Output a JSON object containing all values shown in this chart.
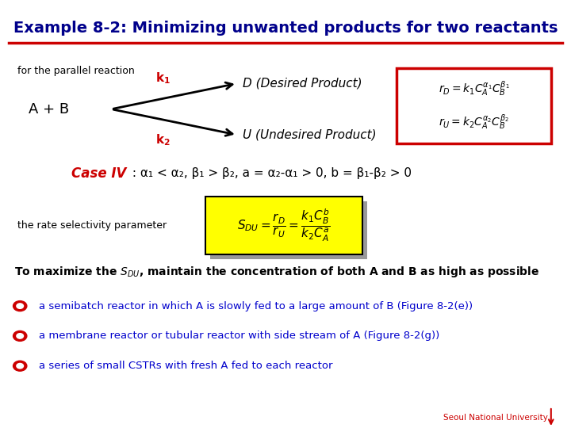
{
  "title": "Example 8-2: Minimizing unwanted products for two reactants",
  "title_color": "#00008B",
  "title_underline_color": "#CC0000",
  "bg_color": "#FFFFFF",
  "parallel_reaction_label": "for the parallel reaction",
  "reactant_label": "A + B",
  "k1_label": "k$_1$",
  "k2_label": "k$_2$",
  "desired_label": "D (Desired Product)",
  "undesired_label": "U (Undesired Product)",
  "case_IV_text": "Case IV",
  "case_IV_rest": " : α₁ < α₂, β₁ > β₂, a = α₂-α₁ > 0, b = β₁-β₂ > 0",
  "rate_selectivity_label": "the rate selectivity parameter",
  "bullet1": "a semibatch reactor in which A is slowly fed to a large amount of B (Figure 8-2(e))",
  "bullet2": "a membrane reactor or tubular reactor with side stream of A (Figure 8-2(g))",
  "bullet3": "a series of small CSTRs with fresh A fed to each reactor",
  "arrow_color": "#000000",
  "k_color": "#CC0000",
  "case_IV_color": "#CC0000",
  "case_text_color": "#000000",
  "bullet_color": "#0000CC",
  "bullet_icon_color": "#CC0000",
  "box_red_color": "#CC0000",
  "box_yellow_color": "#FFFF00",
  "snu_color": "#CC0000",
  "title_fontsize": 14,
  "body_fontsize": 10,
  "small_fontsize": 9
}
